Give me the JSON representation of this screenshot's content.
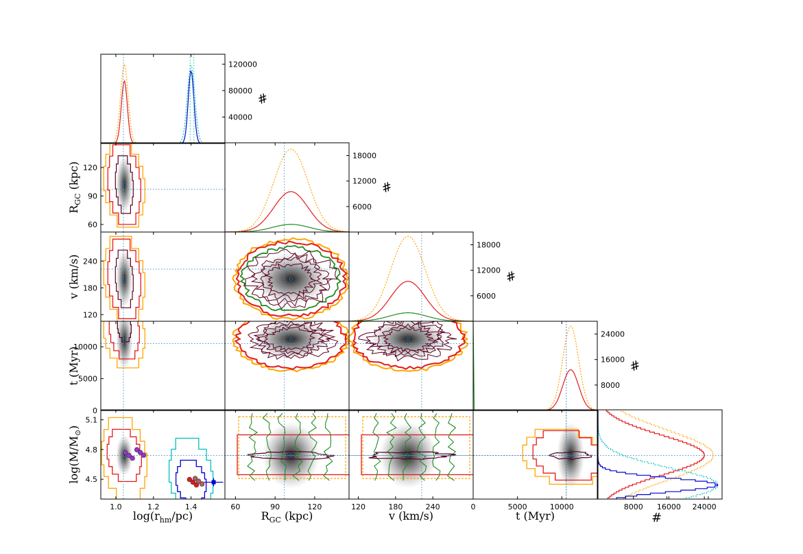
{
  "chart_data": {
    "type": "corner",
    "description_free": true,
    "parameters": [
      {
        "key": "rhm",
        "label_main": "log(r",
        "label_sub": "hm",
        "label_end": "/pc)",
        "range": [
          0.92,
          1.58
        ],
        "ticks": [
          1.0,
          1.2,
          1.4
        ],
        "tick_labels": [
          "1.0",
          "1.2",
          "1.4"
        ],
        "truth": 1.04
      },
      {
        "key": "rgc",
        "label_main": "R",
        "label_sub": "GC",
        "label_end": " (kpc)",
        "range": [
          52,
          146
        ],
        "ticks": [
          60,
          90,
          120
        ],
        "tick_labels": [
          "60",
          "90",
          "120"
        ],
        "truth": 97
      },
      {
        "key": "v",
        "label_main": "v (km/s)",
        "label_sub": "",
        "label_end": "",
        "range": [
          105,
          305
        ],
        "ticks": [
          120,
          180,
          240
        ],
        "tick_labels": [
          "120",
          "180",
          "240"
        ],
        "truth": 222
      },
      {
        "key": "t",
        "label_main": "t (Myr)",
        "label_sub": "",
        "label_end": "",
        "range": [
          0,
          14000
        ],
        "ticks": [
          0,
          5000,
          10000
        ],
        "tick_labels": [
          "0",
          "5000",
          "10000"
        ],
        "truth": 10500
      },
      {
        "key": "m",
        "label_main": "log(M/M",
        "label_sub": "⊙",
        "label_end": ")",
        "range": [
          4.3,
          5.2
        ],
        "ticks": [
          4.5,
          4.8,
          5.1
        ],
        "tick_labels": [
          "4.5",
          "4.8",
          "5.1"
        ],
        "truth": 4.74
      }
    ],
    "histogram_axis_label": "#",
    "histograms": [
      {
        "param": "rhm",
        "ymax": 135000,
        "ticks": [
          40000,
          80000,
          120000
        ],
        "tick_labels": [
          "40000",
          "80000",
          "120000"
        ],
        "series": [
          {
            "color": "#ffa500",
            "dash": true,
            "center": 1.045,
            "sigma": 0.02,
            "peak": 120000
          },
          {
            "color": "#e31a1c",
            "dash": false,
            "center": 1.045,
            "sigma": 0.016,
            "peak": 95000
          },
          {
            "color": "#00c0c0",
            "dash": true,
            "center": 1.4,
            "sigma": 0.02,
            "peak": 118000
          },
          {
            "color": "#0000cc",
            "dash": false,
            "center": 1.4,
            "sigma": 0.015,
            "peak": 110000
          }
        ]
      },
      {
        "param": "rgc",
        "ymax": 21000,
        "ticks": [
          6000,
          12000,
          18000
        ],
        "tick_labels": [
          "6000",
          "12000",
          "18000"
        ],
        "series": [
          {
            "color": "#ffa500",
            "dash": true,
            "center": 102,
            "sigma": 13,
            "peak": 19500
          },
          {
            "color": "#e31a1c",
            "dash": false,
            "center": 102,
            "sigma": 13,
            "peak": 9500
          },
          {
            "color": "#228b22",
            "dash": false,
            "center": 102,
            "sigma": 14,
            "peak": 1800
          }
        ]
      },
      {
        "param": "v",
        "ymax": 21000,
        "ticks": [
          6000,
          12000,
          18000
        ],
        "tick_labels": [
          "6000",
          "12000",
          "18000"
        ],
        "series": [
          {
            "color": "#ffa500",
            "dash": true,
            "center": 200,
            "sigma": 28,
            "peak": 20000
          },
          {
            "color": "#e31a1c",
            "dash": false,
            "center": 200,
            "sigma": 28,
            "peak": 9400
          },
          {
            "color": "#228b22",
            "dash": false,
            "center": 200,
            "sigma": 30,
            "peak": 2000
          }
        ]
      },
      {
        "param": "t",
        "ymax": 28000,
        "ticks": [
          8000,
          16000,
          24000
        ],
        "tick_labels": [
          "8000",
          "16000",
          "24000"
        ],
        "series": [
          {
            "color": "#ffa500",
            "dash": true,
            "center": 11000,
            "sigma": 900,
            "peak": 26500
          },
          {
            "color": "#e31a1c",
            "dash": false,
            "center": 11000,
            "sigma": 900,
            "peak": 12800
          },
          {
            "color": "#228b22",
            "dash": false,
            "center": 0,
            "sigma": 30,
            "peak": 28000
          }
        ]
      },
      {
        "param": "m",
        "orientation": "horizontal",
        "xmax": 28000,
        "ticks": [
          8000,
          16000,
          24000
        ],
        "tick_labels": [
          "8000",
          "16000",
          "24000"
        ],
        "series": [
          {
            "color": "#ffa500",
            "dash": true,
            "center": 4.75,
            "sigma": 0.25,
            "peak": 26000
          },
          {
            "color": "#e31a1c",
            "dash": false,
            "center": 4.75,
            "sigma": 0.2,
            "peak": 24000
          },
          {
            "color": "#00c0c0",
            "dash": true,
            "center": 4.45,
            "sigma": 0.17,
            "peak": 27000
          },
          {
            "color": "#0000cc",
            "dash": false,
            "center": 4.45,
            "sigma": 0.07,
            "peak": 27000
          }
        ]
      }
    ],
    "contour_colors": {
      "outer": "#ffa500",
      "mid": "#e31a1c",
      "green": "#228b22",
      "inner": "#5a0020",
      "cyan": "#00c0c0",
      "blue": "#0000cc"
    },
    "observed_points": [
      {
        "rhm": 1.07,
        "m": 4.74,
        "color": "#9932cc"
      },
      {
        "rhm": 1.13,
        "m": 4.77,
        "color": "#9932cc"
      },
      {
        "rhm": 1.41,
        "m": 4.47,
        "color": "#e31a1c"
      },
      {
        "rhm": 1.44,
        "m": 4.48,
        "color": "#b06060"
      },
      {
        "rhm": 1.52,
        "m": 4.47,
        "color": "#0000cc"
      }
    ]
  }
}
